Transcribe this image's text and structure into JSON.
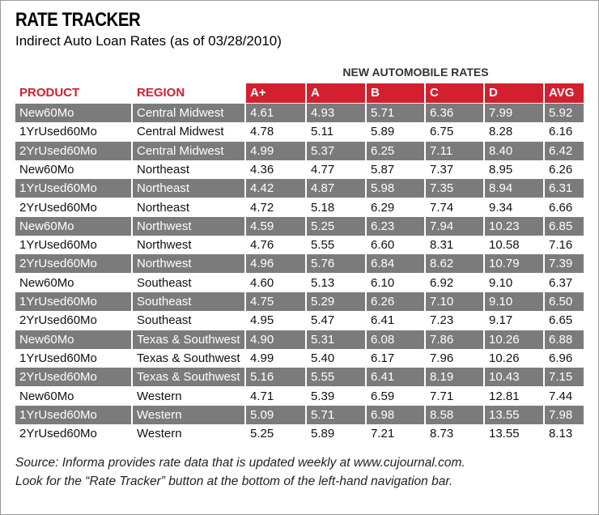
{
  "header": {
    "title": "RATE TRACKER",
    "subtitle": "Indirect Auto Loan Rates (as of 03/28/2010)"
  },
  "table": {
    "group_header": "NEW AUTOMOBILE RATES",
    "columns": [
      "PRODUCT",
      "REGION",
      "A+",
      "A",
      "B",
      "C",
      "D",
      "AVG"
    ],
    "rows": [
      [
        "New60Mo",
        "Central Midwest",
        "4.61",
        "4.93",
        "5.71",
        "6.36",
        "7.99",
        "5.92"
      ],
      [
        "1YrUsed60Mo",
        "Central Midwest",
        "4.78",
        "5.11",
        "5.89",
        "6.75",
        "8.28",
        "6.16"
      ],
      [
        "2YrUsed60Mo",
        "Central Midwest",
        "4.99",
        "5.37",
        "6.25",
        "7.11",
        "8.40",
        "6.42"
      ],
      [
        "New60Mo",
        "Northeast",
        "4.36",
        "4.77",
        "5.87",
        "7.37",
        "8.95",
        "6.26"
      ],
      [
        "1YrUsed60Mo",
        "Northeast",
        "4.42",
        "4.87",
        "5.98",
        "7.35",
        "8.94",
        "6.31"
      ],
      [
        "2YrUsed60Mo",
        "Northeast",
        "4.72",
        "5.18",
        "6.29",
        "7.74",
        "9.34",
        "6.66"
      ],
      [
        "New60Mo",
        "Northwest",
        "4.59",
        "5.25",
        "6.23",
        "7.94",
        "10.23",
        "6.85"
      ],
      [
        "1YrUsed60Mo",
        "Northwest",
        "4.76",
        "5.55",
        "6.60",
        "8.31",
        "10.58",
        "7.16"
      ],
      [
        "2YrUsed60Mo",
        "Northwest",
        "4.96",
        "5.76",
        "6.84",
        "8.62",
        "10.79",
        "7.39"
      ],
      [
        "New60Mo",
        "Southeast",
        "4.60",
        "5.13",
        "6.10",
        "6.92",
        "9.10",
        "6.37"
      ],
      [
        "1YrUsed60Mo",
        "Southeast",
        "4.75",
        "5.29",
        "6.26",
        "7.10",
        "9.10",
        "6.50"
      ],
      [
        "2YrUsed60Mo",
        "Southeast",
        "4.95",
        "5.47",
        "6.41",
        "7.23",
        "9.17",
        "6.65"
      ],
      [
        "New60Mo",
        "Texas & Southwest",
        "4.90",
        "5.31",
        "6.08",
        "7.86",
        "10.26",
        "6.88"
      ],
      [
        "1YrUsed60Mo",
        "Texas & Southwest",
        "4.99",
        "5.40",
        "6.17",
        "7.96",
        "10.26",
        "6.96"
      ],
      [
        "2YrUsed60Mo",
        "Texas & Southwest",
        "5.16",
        "5.55",
        "6.41",
        "8.19",
        "10.43",
        "7.15"
      ],
      [
        "New60Mo",
        "Western",
        "4.71",
        "5.39",
        "6.59",
        "7.71",
        "12.81",
        "7.44"
      ],
      [
        "1YrUsed60Mo",
        "Western",
        "5.09",
        "5.71",
        "6.98",
        "8.58",
        "13.55",
        "7.98"
      ],
      [
        "2YrUsed60Mo",
        "Western",
        "5.25",
        "5.89",
        "7.21",
        "8.73",
        "13.55",
        "8.13"
      ]
    ]
  },
  "footer": {
    "lines": [
      "Source: Informa provides rate data that is updated weekly at www.cujournal.com.",
      "Look for the “Rate Tracker” button at the bottom of the left-hand navigation bar."
    ]
  }
}
